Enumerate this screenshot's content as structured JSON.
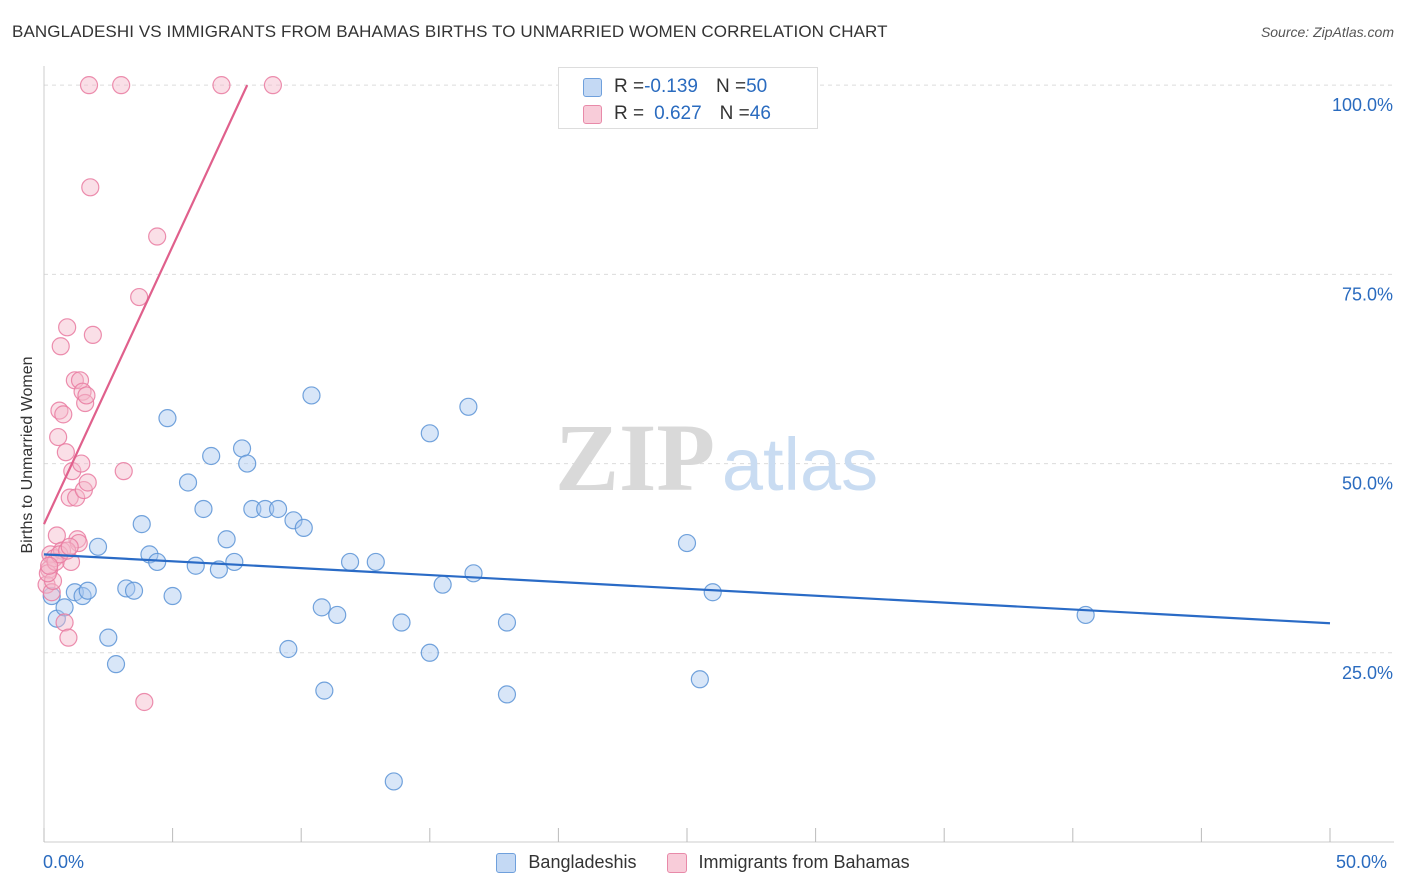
{
  "title": "BANGLADESHI VS IMMIGRANTS FROM BAHAMAS BIRTHS TO UNMARRIED WOMEN CORRELATION CHART",
  "source": "Source: ZipAtlas.com",
  "watermark": {
    "zip": "ZIP",
    "atlas": "atlas"
  },
  "stats": {
    "rows": [
      {
        "r_label": "R = ",
        "r_value": "-0.139",
        "n_label": "N = ",
        "n_value": "50",
        "color": "#a8c8f0"
      },
      {
        "r_label": "R = ",
        "r_value": "0.627",
        "n_label": "N = ",
        "n_value": "46",
        "color": "#f4b8ca"
      }
    ]
  },
  "legend": {
    "items": [
      {
        "label": "Bangladeshis",
        "color": "#a8c8f0"
      },
      {
        "label": "Immigrants from Bahamas",
        "color": "#f4b8ca"
      }
    ]
  },
  "x_axis": {
    "min_label": "0.0%",
    "max_label": "50.0%"
  },
  "chart_data": {
    "type": "scatter",
    "title": "BANGLADESHI VS IMMIGRANTS FROM BAHAMAS BIRTHS TO UNMARRIED WOMEN CORRELATION CHART",
    "xlabel": "",
    "ylabel": "Births to Unmarried Women",
    "xlim": [
      0,
      50
    ],
    "ylim": [
      0,
      102
    ],
    "y_ticks": [
      25,
      50,
      75,
      100
    ],
    "y_tick_labels": [
      "25.0%",
      "50.0%",
      "75.0%",
      "100.0%"
    ],
    "x_tick_labels": [
      "0.0%",
      "50.0%"
    ],
    "grid": true,
    "series": [
      {
        "name": "Bangladeshis",
        "color": "#5b93d6",
        "fill": "#a8c8f0",
        "trend": {
          "x0": 0,
          "y0": 38,
          "x1": 50,
          "y1": 28.9,
          "color": "#2a6bc6"
        },
        "points": [
          [
            0.3,
            32.5
          ],
          [
            0.5,
            29.5
          ],
          [
            0.8,
            31
          ],
          [
            1.2,
            33
          ],
          [
            1.5,
            32.5
          ],
          [
            1.7,
            33.2
          ],
          [
            2.1,
            39
          ],
          [
            2.5,
            27
          ],
          [
            2.8,
            23.5
          ],
          [
            3.2,
            33.5
          ],
          [
            3.5,
            33.2
          ],
          [
            3.8,
            42
          ],
          [
            4.1,
            38
          ],
          [
            4.4,
            37
          ],
          [
            4.8,
            56
          ],
          [
            5.0,
            32.5
          ],
          [
            5.6,
            47.5
          ],
          [
            5.9,
            36.5
          ],
          [
            6.2,
            44
          ],
          [
            6.5,
            51
          ],
          [
            6.8,
            36
          ],
          [
            7.1,
            40
          ],
          [
            7.4,
            37
          ],
          [
            7.7,
            52
          ],
          [
            7.9,
            50
          ],
          [
            8.1,
            44
          ],
          [
            8.6,
            44
          ],
          [
            9.1,
            44
          ],
          [
            9.5,
            25.5
          ],
          [
            9.7,
            42.5
          ],
          [
            10.1,
            41.5
          ],
          [
            10.4,
            59
          ],
          [
            10.8,
            31
          ],
          [
            10.9,
            20
          ],
          [
            11.4,
            30
          ],
          [
            11.9,
            37
          ],
          [
            12.9,
            37
          ],
          [
            13.6,
            8
          ],
          [
            13.9,
            29
          ],
          [
            15.0,
            25
          ],
          [
            15.0,
            54
          ],
          [
            15.5,
            34
          ],
          [
            16.5,
            57.5
          ],
          [
            16.7,
            35.5
          ],
          [
            18.0,
            29
          ],
          [
            18.0,
            19.5
          ],
          [
            25.0,
            39.5
          ],
          [
            25.5,
            21.5
          ],
          [
            26.0,
            33
          ],
          [
            40.5,
            30
          ]
        ]
      },
      {
        "name": "Immigrants from Bahamas",
        "color": "#e97aa0",
        "fill": "#f4b8ca",
        "trend": {
          "x0": 0,
          "y0": 42,
          "x1": 7.9,
          "y1": 100,
          "color": "#e0608c"
        },
        "points": [
          [
            0.1,
            34
          ],
          [
            0.2,
            36
          ],
          [
            0.25,
            38
          ],
          [
            0.3,
            33
          ],
          [
            0.35,
            34.5
          ],
          [
            0.4,
            37.5
          ],
          [
            0.5,
            40.5
          ],
          [
            0.55,
            53.5
          ],
          [
            0.6,
            57
          ],
          [
            0.65,
            65.5
          ],
          [
            0.7,
            38.5
          ],
          [
            0.75,
            56.5
          ],
          [
            0.8,
            29
          ],
          [
            0.85,
            51.5
          ],
          [
            0.9,
            68
          ],
          [
            0.95,
            27
          ],
          [
            1.0,
            45.5
          ],
          [
            1.05,
            37
          ],
          [
            1.1,
            49
          ],
          [
            1.2,
            61
          ],
          [
            1.25,
            45.5
          ],
          [
            1.3,
            40
          ],
          [
            1.35,
            39.5
          ],
          [
            1.4,
            61
          ],
          [
            1.45,
            50
          ],
          [
            1.5,
            59.5
          ],
          [
            1.55,
            46.5
          ],
          [
            1.6,
            58
          ],
          [
            1.65,
            59
          ],
          [
            1.7,
            47.5
          ],
          [
            1.75,
            100
          ],
          [
            1.8,
            86.5
          ],
          [
            1.9,
            67
          ],
          [
            3.1,
            49
          ],
          [
            3.0,
            100
          ],
          [
            3.7,
            72
          ],
          [
            3.9,
            18.5
          ],
          [
            4.4,
            80
          ],
          [
            6.9,
            100
          ],
          [
            8.9,
            100
          ],
          [
            0.15,
            35.5
          ],
          [
            0.45,
            37
          ],
          [
            0.6,
            38
          ],
          [
            0.2,
            36.5
          ],
          [
            0.9,
            38.5
          ],
          [
            1.0,
            39
          ]
        ]
      }
    ]
  }
}
